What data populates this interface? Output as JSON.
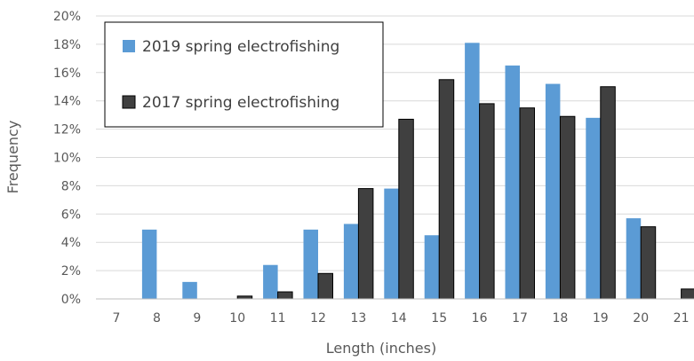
{
  "chart_data": {
    "type": "bar",
    "title": "",
    "xlabel": "Length (inches)",
    "ylabel": "Frequency",
    "categories": [
      "7",
      "8",
      "9",
      "10",
      "11",
      "12",
      "13",
      "14",
      "15",
      "16",
      "17",
      "18",
      "19",
      "20",
      "21"
    ],
    "ylim": [
      0,
      0.2
    ],
    "yticks": [
      "0%",
      "2%",
      "4%",
      "6%",
      "8%",
      "10%",
      "12%",
      "14%",
      "16%",
      "18%",
      "20%"
    ],
    "grid": true,
    "legend_position": "top-left",
    "series": [
      {
        "name": "2019 spring electrofishing",
        "color": "#5b9bd5",
        "values": [
          0,
          0.049,
          0.012,
          0,
          0.024,
          0.049,
          0.053,
          0.078,
          0.045,
          0.181,
          0.165,
          0.152,
          0.128,
          0.057,
          0
        ]
      },
      {
        "name": "2017 spring electrofishing",
        "color": "#404040",
        "values": [
          0,
          0,
          0,
          0.002,
          0.005,
          0.018,
          0.078,
          0.127,
          0.155,
          0.138,
          0.135,
          0.129,
          0.15,
          0.051,
          0.007
        ]
      }
    ]
  }
}
